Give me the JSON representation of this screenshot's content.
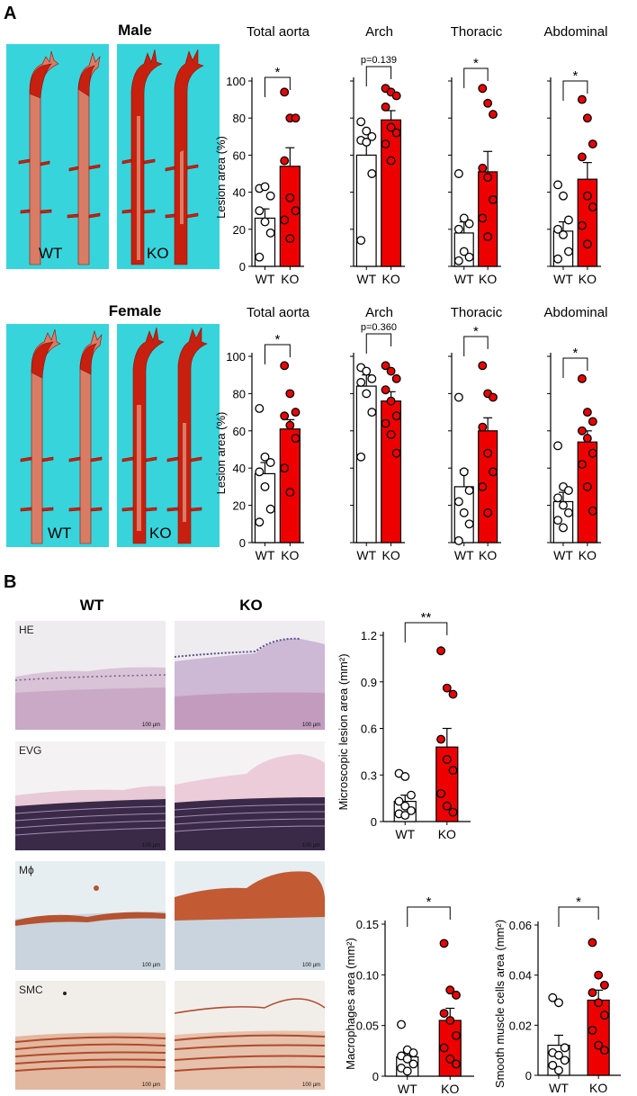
{
  "panel_a": {
    "letter": "A",
    "male": {
      "title": "Male",
      "photo_labels": [
        "WT",
        "KO"
      ]
    },
    "female": {
      "title": "Female",
      "photo_labels": [
        "WT",
        "KO"
      ]
    }
  },
  "panel_b": {
    "letter": "B",
    "col_wt": "WT",
    "col_ko": "KO",
    "stains": [
      "HE",
      "EVG",
      "Mϕ",
      "SMC"
    ],
    "scalebar": "100 µm"
  },
  "colors": {
    "ko_fill": "#ee0000",
    "wt_fill": "#ffffff",
    "aorta_bg": "#38d4dc",
    "aorta_red": "#c8200e"
  },
  "chart_data": [
    {
      "id": "male",
      "type": "bar",
      "ylabel": "Lesion area (%)",
      "ylim": [
        0,
        100
      ],
      "yticks": [
        "0",
        "20",
        "40",
        "60",
        "80",
        "100"
      ],
      "categories": [
        "WT",
        "KO"
      ],
      "groups": [
        {
          "title": "Total aorta",
          "sig": "*",
          "values": [
            26,
            54
          ],
          "errors": [
            5,
            10
          ],
          "points": [
            [
              42,
              43,
              38,
              30,
              24,
              18,
              5
            ],
            [
              94,
              80,
              80,
              57,
              37,
              30,
              25,
              15
            ]
          ]
        },
        {
          "title": "Arch",
          "sig": "p=0.139",
          "values": [
            60,
            79
          ],
          "errors": [
            7,
            5
          ],
          "points": [
            [
              78,
              73,
              70,
              68,
              67,
              50,
              14
            ],
            [
              96,
              94,
              92,
              86,
              75,
              72,
              66,
              57
            ]
          ]
        },
        {
          "title": "Thoracic",
          "sig": "*",
          "values": [
            18,
            51
          ],
          "errors": [
            6,
            11
          ],
          "points": [
            [
              50,
              26,
              23,
              20,
              8,
              5,
              3
            ],
            [
              96,
              88,
              82,
              53,
              48,
              36,
              26,
              16
            ]
          ]
        },
        {
          "title": "Abdominal",
          "sig": "*",
          "values": [
            19,
            47
          ],
          "errors": [
            5,
            9
          ],
          "points": [
            [
              44,
              38,
              25,
              20,
              17,
              8,
              4
            ],
            [
              90,
              80,
              66,
              59,
              38,
              32,
              22,
              12
            ]
          ]
        }
      ]
    },
    {
      "id": "female",
      "type": "bar",
      "ylabel": "Lesion area (%)",
      "ylim": [
        0,
        100
      ],
      "yticks": [
        "0",
        "20",
        "40",
        "60",
        "80",
        "100"
      ],
      "categories": [
        "WT",
        "KO"
      ],
      "groups": [
        {
          "title": "Total aorta",
          "sig": "*",
          "values": [
            37,
            61
          ],
          "errors": [
            6,
            5
          ],
          "points": [
            [
              72,
              46,
              43,
              38,
              30,
              18,
              11
            ],
            [
              95,
              80,
              70,
              68,
              63,
              56,
              40,
              27
            ]
          ]
        },
        {
          "title": "Arch",
          "sig": "p=0.360",
          "values": [
            84,
            76
          ],
          "errors": [
            6,
            5
          ],
          "points": [
            [
              94,
              92,
              88,
              86,
              80,
              70,
              46
            ],
            [
              95,
              92,
              88,
              82,
              76,
              68,
              64,
              58,
              48
            ]
          ]
        },
        {
          "title": "Thoracic",
          "sig": "*",
          "values": [
            30,
            60
          ],
          "errors": [
            9,
            7
          ],
          "points": [
            [
              78,
              38,
              28,
              22,
              16,
              10,
              1
            ],
            [
              95,
              80,
              78,
              62,
              48,
              38,
              30,
              16
            ]
          ]
        },
        {
          "title": "Abdominal",
          "sig": "*",
          "values": [
            22,
            54
          ],
          "errors": [
            5,
            6
          ],
          "points": [
            [
              52,
              30,
              28,
              24,
              20,
              16,
              12,
              8
            ],
            [
              88,
              70,
              65,
              60,
              56,
              48,
              42,
              30,
              17
            ]
          ]
        }
      ]
    },
    {
      "id": "micro",
      "type": "bar",
      "ylabel": "Microscopic lesion area (mm²)",
      "ylim": [
        0,
        1.2
      ],
      "yticks": [
        "0",
        "0.3",
        "0.6",
        "0.9",
        "1.2"
      ],
      "categories": [
        "WT",
        "KO"
      ],
      "groups": [
        {
          "title": "",
          "sig": "**",
          "values": [
            0.13,
            0.48
          ],
          "errors": [
            0.04,
            0.12
          ],
          "points": [
            [
              0.31,
              0.29,
              0.17,
              0.13,
              0.1,
              0.07,
              0.05,
              0.04
            ],
            [
              1.1,
              0.86,
              0.82,
              0.53,
              0.4,
              0.33,
              0.18,
              0.1,
              0.06
            ]
          ]
        }
      ]
    },
    {
      "id": "macro",
      "type": "bar",
      "ylabel": "Macrophages area (mm²)",
      "ylim": [
        0,
        0.15
      ],
      "yticks": [
        "0",
        "0.05",
        "0.10",
        "0.15"
      ],
      "categories": [
        "WT",
        "KO"
      ],
      "groups": [
        {
          "title": "",
          "sig": "*",
          "values": [
            0.019,
            0.055
          ],
          "errors": [
            0.005,
            0.012
          ],
          "points": [
            [
              0.051,
              0.026,
              0.023,
              0.02,
              0.017,
              0.012,
              0.008,
              0.005
            ],
            [
              0.131,
              0.085,
              0.08,
              0.062,
              0.055,
              0.04,
              0.028,
              0.017,
              0.012
            ]
          ]
        }
      ]
    },
    {
      "id": "smc",
      "type": "bar",
      "ylabel": "Smooth muscle cells area (mm²)",
      "ylim": [
        0,
        0.06
      ],
      "yticks": [
        "0",
        "0.02",
        "0.04",
        "0.06"
      ],
      "categories": [
        "WT",
        "KO"
      ],
      "groups": [
        {
          "title": "",
          "sig": "*",
          "values": [
            0.012,
            0.03
          ],
          "errors": [
            0.004,
            0.004
          ],
          "points": [
            [
              0.031,
              0.029,
              0.011,
              0.009,
              0.008,
              0.006,
              0.004,
              0.002
            ],
            [
              0.053,
              0.04,
              0.036,
              0.033,
              0.029,
              0.024,
              0.018,
              0.012,
              0.01
            ]
          ]
        }
      ]
    }
  ]
}
